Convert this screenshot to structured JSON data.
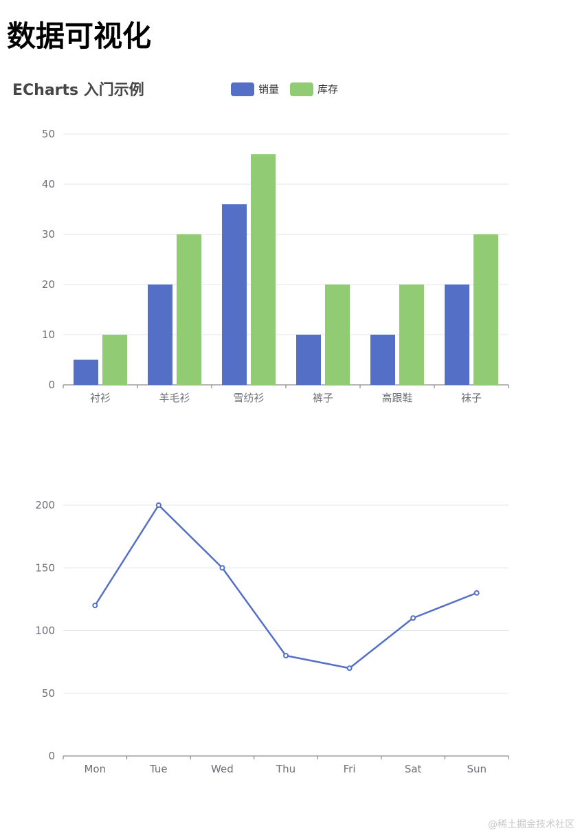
{
  "page": {
    "title": "数据可视化",
    "watermark": "@稀土掘金技术社区"
  },
  "colors": {
    "series_blue": "#5470c6",
    "series_green": "#91cc75",
    "axis": "#6e7079",
    "grid": "#e0e6f1",
    "title": "#464646",
    "label": "#6e7079"
  },
  "chart_data": [
    {
      "type": "bar",
      "title": "ECharts 入门示例",
      "categories": [
        "衬衫",
        "羊毛衫",
        "雪纺衫",
        "裤子",
        "高跟鞋",
        "袜子"
      ],
      "series": [
        {
          "name": "销量",
          "values": [
            5,
            20,
            36,
            10,
            10,
            20
          ],
          "color": "#5470c6"
        },
        {
          "name": "库存",
          "values": [
            10,
            30,
            46,
            20,
            20,
            30
          ],
          "color": "#91cc75"
        }
      ],
      "ylim": [
        0,
        50
      ],
      "yticks": [
        0,
        10,
        20,
        30,
        40,
        50
      ],
      "grid": true,
      "legend_position": "top-center"
    },
    {
      "type": "line",
      "title": "",
      "categories": [
        "Mon",
        "Tue",
        "Wed",
        "Thu",
        "Fri",
        "Sat",
        "Sun"
      ],
      "series": [
        {
          "values": [
            120,
            200,
            150,
            80,
            70,
            110,
            130
          ],
          "color": "#5470c6"
        }
      ],
      "ylim": [
        0,
        200
      ],
      "yticks": [
        0,
        50,
        100,
        150,
        200
      ],
      "grid": true
    }
  ]
}
